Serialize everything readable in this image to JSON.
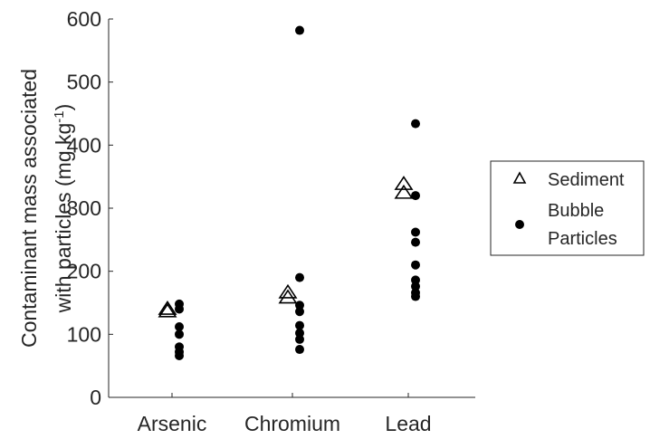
{
  "chart_data": {
    "type": "scatter",
    "categories": [
      "Arsenic",
      "Chromium",
      "Lead"
    ],
    "ylabel_line1": "Contaminant mass associated",
    "ylabel_line2_prefix": "with particles (mg kg",
    "ylabel_superscript": "-1",
    "ylabel_line2_suffix": ")",
    "ylim": [
      0,
      600
    ],
    "yticks": [
      "0",
      "100",
      "200",
      "300",
      "400",
      "500",
      "600"
    ],
    "grid": false,
    "legend_position": "right",
    "series": [
      {
        "name": "Sediment",
        "marker": "triangle",
        "points": [
          {
            "category": "Arsenic",
            "y": 136
          },
          {
            "category": "Arsenic",
            "y": 140
          },
          {
            "category": "Chromium",
            "y": 158
          },
          {
            "category": "Chromium",
            "y": 166
          },
          {
            "category": "Lead",
            "y": 324
          },
          {
            "category": "Lead",
            "y": 338
          }
        ]
      },
      {
        "name": "Bubble Particles",
        "legend_line1": "Bubble",
        "legend_line2": "Particles",
        "marker": "dot",
        "points": [
          {
            "category": "Arsenic",
            "y": 148
          },
          {
            "category": "Arsenic",
            "y": 140
          },
          {
            "category": "Arsenic",
            "y": 112
          },
          {
            "category": "Arsenic",
            "y": 100
          },
          {
            "category": "Arsenic",
            "y": 80
          },
          {
            "category": "Arsenic",
            "y": 72
          },
          {
            "category": "Arsenic",
            "y": 66
          },
          {
            "category": "Chromium",
            "y": 582
          },
          {
            "category": "Chromium",
            "y": 190
          },
          {
            "category": "Chromium",
            "y": 146
          },
          {
            "category": "Chromium",
            "y": 136
          },
          {
            "category": "Chromium",
            "y": 114
          },
          {
            "category": "Chromium",
            "y": 102
          },
          {
            "category": "Chromium",
            "y": 92
          },
          {
            "category": "Chromium",
            "y": 76
          },
          {
            "category": "Lead",
            "y": 434
          },
          {
            "category": "Lead",
            "y": 320
          },
          {
            "category": "Lead",
            "y": 262
          },
          {
            "category": "Lead",
            "y": 246
          },
          {
            "category": "Lead",
            "y": 210
          },
          {
            "category": "Lead",
            "y": 186
          },
          {
            "category": "Lead",
            "y": 176
          },
          {
            "category": "Lead",
            "y": 166
          },
          {
            "category": "Lead",
            "y": 160
          }
        ]
      }
    ],
    "colors": {
      "axis": "#262626",
      "marker": "#000000",
      "background": "#ffffff"
    }
  }
}
